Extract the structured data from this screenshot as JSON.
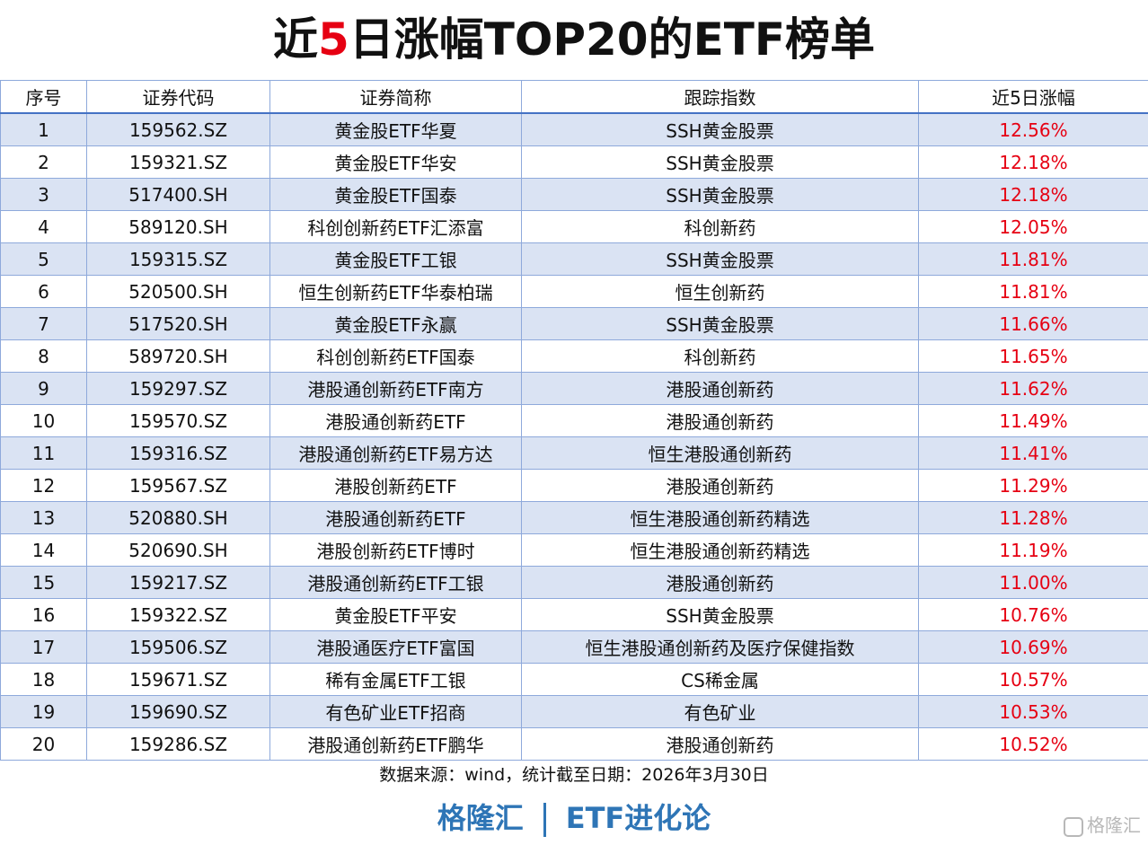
{
  "title": {
    "prefix": "近",
    "highlight": "5",
    "suffix": "日涨幅TOP20的ETF榜单"
  },
  "table": {
    "header": [
      "序号",
      "证券代码",
      "证券简称",
      "跟踪指数",
      "近5日涨幅"
    ],
    "rows": [
      [
        "1",
        "159562.SZ",
        "黄金股ETF华夏",
        "SSH黄金股票",
        "12.56%"
      ],
      [
        "2",
        "159321.SZ",
        "黄金股ETF华安",
        "SSH黄金股票",
        "12.18%"
      ],
      [
        "3",
        "517400.SH",
        "黄金股ETF国泰",
        "SSH黄金股票",
        "12.18%"
      ],
      [
        "4",
        "589120.SH",
        "科创创新药ETF汇添富",
        "科创新药",
        "12.05%"
      ],
      [
        "5",
        "159315.SZ",
        "黄金股ETF工银",
        "SSH黄金股票",
        "11.81%"
      ],
      [
        "6",
        "520500.SH",
        "恒生创新药ETF华泰柏瑞",
        "恒生创新药",
        "11.81%"
      ],
      [
        "7",
        "517520.SH",
        "黄金股ETF永赢",
        "SSH黄金股票",
        "11.66%"
      ],
      [
        "8",
        "589720.SH",
        "科创创新药ETF国泰",
        "科创新药",
        "11.65%"
      ],
      [
        "9",
        "159297.SZ",
        "港股通创新药ETF南方",
        "港股通创新药",
        "11.62%"
      ],
      [
        "10",
        "159570.SZ",
        "港股通创新药ETF",
        "港股通创新药",
        "11.49%"
      ],
      [
        "11",
        "159316.SZ",
        "港股通创新药ETF易方达",
        "恒生港股通创新药",
        "11.41%"
      ],
      [
        "12",
        "159567.SZ",
        "港股创新药ETF",
        "港股通创新药",
        "11.29%"
      ],
      [
        "13",
        "520880.SH",
        "港股通创新药ETF",
        "恒生港股通创新药精选",
        "11.28%"
      ],
      [
        "14",
        "520690.SH",
        "港股创新药ETF博时",
        "恒生港股通创新药精选",
        "11.19%"
      ],
      [
        "15",
        "159217.SZ",
        "港股通创新药ETF工银",
        "港股通创新药",
        "11.00%"
      ],
      [
        "16",
        "159322.SZ",
        "黄金股ETF平安",
        "SSH黄金股票",
        "10.76%"
      ],
      [
        "17",
        "159506.SZ",
        "港股通医疗ETF富国",
        "恒生港股通创新药及医疗保健指数",
        "10.69%"
      ],
      [
        "18",
        "159671.SZ",
        "稀有金属ETF工银",
        "CS稀金属",
        "10.57%"
      ],
      [
        "19",
        "159690.SZ",
        "有色矿业ETF招商",
        "有色矿业",
        "10.53%"
      ],
      [
        "20",
        "159286.SZ",
        "港股通创新药ETF鹏华",
        "港股通创新药",
        "10.52%"
      ]
    ]
  },
  "footer": {
    "source": "数据来源：wind，统计截至日期：2026年3月30日",
    "brand_left": "格隆汇",
    "brand_right": "ETF进化论",
    "watermark": "格隆汇"
  }
}
